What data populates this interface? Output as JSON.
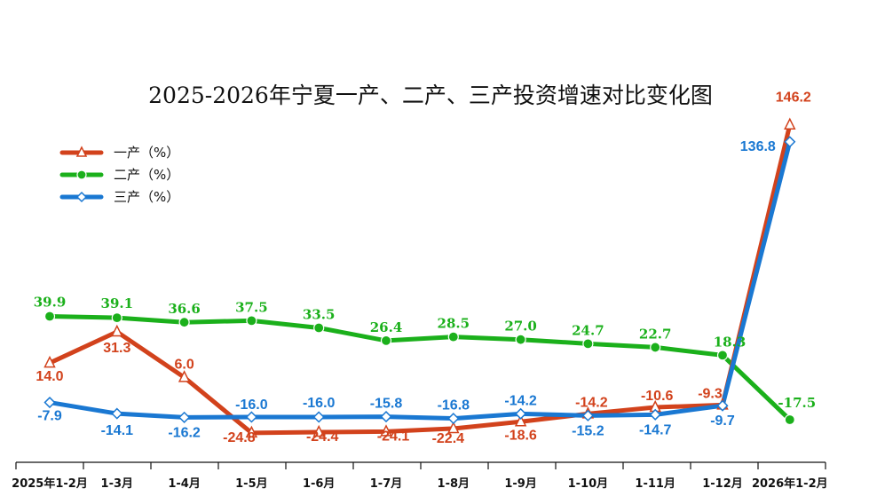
{
  "chart_data": {
    "type": "line",
    "title": "2025-2026年宁夏一产、二产、三产投资增速对比变化图",
    "categories": [
      "2025年1-2月",
      "1-3月",
      "1-4月",
      "1-5月",
      "1-6月",
      "1-7月",
      "1-8月",
      "1-9月",
      "1-10月",
      "1-11月",
      "1-12月",
      "2026年1-2月"
    ],
    "ylim": [
      -30,
      150
    ],
    "legend_position": "top-left",
    "grid": false,
    "series": [
      {
        "name": "一产（%）",
        "marker": "triangle",
        "color": "#d2421c",
        "values": [
          14.0,
          31.3,
          6.0,
          -24.8,
          -24.4,
          -24.1,
          -22.4,
          -18.6,
          -14.2,
          -10.6,
          -9.3,
          146.2
        ],
        "labels": [
          "14.0",
          "31.3",
          "6.0",
          "-24.8",
          "-24.4",
          "-24.1",
          "-22.4",
          "-18.6",
          "-14.2",
          "-10.6",
          "-9.3",
          "146.2"
        ]
      },
      {
        "name": "二产（%）",
        "marker": "circle",
        "color": "#1bb01b",
        "values": [
          39.9,
          39.1,
          36.6,
          37.5,
          33.5,
          26.4,
          28.5,
          27.0,
          24.7,
          22.7,
          18.3,
          -17.5
        ],
        "labels": [
          "39.9",
          "39.1",
          "36.6",
          "37.5",
          "33.5",
          "26.4",
          "28.5",
          "27.0",
          "24.7",
          "22.7",
          "18.3",
          "-17.5"
        ]
      },
      {
        "name": "三产（%）",
        "marker": "diamond",
        "color": "#1a78d2",
        "values": [
          -7.9,
          -14.1,
          -16.2,
          -16.0,
          -16.0,
          -15.8,
          -16.8,
          -14.2,
          -15.2,
          -14.7,
          -9.7,
          136.8
        ],
        "labels": [
          "-7.9",
          "-14.1",
          "-16.2",
          "-16.0",
          "-16.0",
          "-15.8",
          "-16.8",
          "-14.2",
          "-15.2",
          "-14.7",
          "-9.7",
          "136.8"
        ]
      }
    ]
  }
}
